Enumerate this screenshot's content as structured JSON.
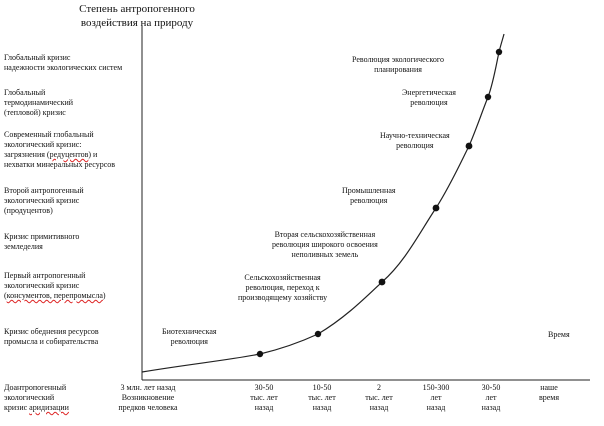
{
  "diagram": {
    "y_axis_title": [
      "Степень антропогенного",
      "воздействия на природу"
    ],
    "x_axis_label": "Время",
    "crises": [
      {
        "lines": [
          "Глобальный кризис",
          "надежности экологических систем"
        ],
        "underline": []
      },
      {
        "lines": [
          "Глобальный",
          "термодинамический",
          "(тепловой) кризис"
        ],
        "underline": []
      },
      {
        "lines": [
          "Современный глобальный",
          "экологический кризис:",
          "загрязнения (редуцентов) и",
          "нехватки минеральных ресурсов"
        ],
        "underline": [
          "редуцентов"
        ]
      },
      {
        "lines": [
          "Второй антропогенный",
          "экологический кризис",
          "(продуцентов)"
        ],
        "underline": []
      },
      {
        "lines": [
          "Кризис примитивного",
          "земледелия"
        ],
        "underline": []
      },
      {
        "lines": [
          "Первый антропогенный",
          "экологический кризис",
          "(консументов, перепромысла)"
        ],
        "underline": [
          "консументов, перепромысла"
        ]
      },
      {
        "lines": [
          "Кризис обеднения ресурсов",
          "промысла и собирательства"
        ],
        "underline": []
      },
      {
        "lines": [
          "Доантропогенный",
          "экологический",
          "кризис аридизации"
        ],
        "underline": [
          "аридизации"
        ]
      }
    ],
    "revolutions": [
      {
        "lines": [
          "Биотехническая",
          "революция"
        ]
      },
      {
        "lines": [
          "Сельскохозяйственная",
          "революция, переход к",
          "производящему хозяйству"
        ]
      },
      {
        "lines": [
          "Вторая сельскохозяйственная",
          "революция широкого освоения",
          "неполивных земель"
        ]
      },
      {
        "lines": [
          "Промышленная",
          "революция"
        ]
      },
      {
        "lines": [
          "Научно-техническая",
          "революция"
        ]
      },
      {
        "lines": [
          "Энергетическая",
          "революция"
        ]
      },
      {
        "lines": [
          "Революция экологического",
          "планирования"
        ]
      }
    ],
    "x_ticks": [
      {
        "lines": [
          "3 млн. лет назад",
          "Возникновение",
          "предков человека"
        ]
      },
      {
        "lines": [
          "30-50",
          "тыс. лет",
          "назад"
        ]
      },
      {
        "lines": [
          "10-50",
          "тыс. лет",
          "назад"
        ]
      },
      {
        "lines": [
          "2",
          "тыс. лет",
          "назад"
        ]
      },
      {
        "lines": [
          "150-300",
          "лет",
          "назад"
        ]
      },
      {
        "lines": [
          "30-50",
          "лет",
          "назад"
        ]
      },
      {
        "lines": [
          "наше",
          "время"
        ]
      }
    ]
  }
}
